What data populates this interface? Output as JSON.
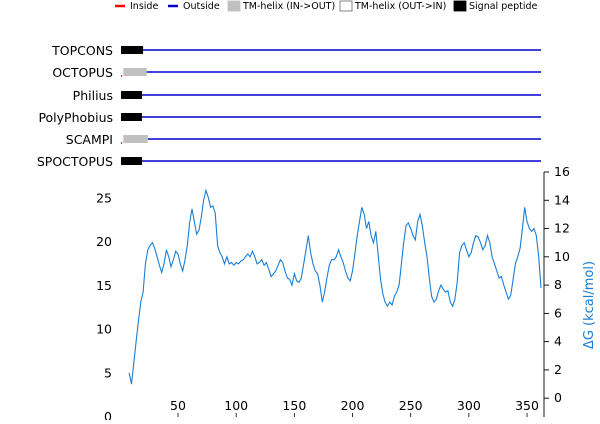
{
  "chart_data": {
    "type": "line",
    "legend": {
      "placement": "top",
      "items": [
        {
          "label": "Inside",
          "color": "#ff0000",
          "kind": "line"
        },
        {
          "label": "Outside",
          "color": "#0000cc",
          "kind": "line"
        },
        {
          "label": "TM-helix (IN->OUT)",
          "color": "#c0c0c0",
          "kind": "box"
        },
        {
          "label": "TM-helix (OUT->IN)",
          "color": "#ffffff",
          "kind": "box"
        },
        {
          "label": "Signal peptide",
          "color": "#000000",
          "kind": "box"
        }
      ]
    },
    "tracks": [
      {
        "name": "TOPCONS",
        "outside": [
          20,
          362
        ],
        "segments": [
          {
            "type": "signal",
            "start": 1,
            "end": 20
          }
        ]
      },
      {
        "name": "OCTOPUS",
        "outside": [
          23,
          362
        ],
        "inside": [
          1,
          2
        ],
        "segments": [
          {
            "type": "tm_in_out",
            "start": 3,
            "end": 23
          }
        ]
      },
      {
        "name": "Philius",
        "outside": [
          19,
          362
        ],
        "segments": [
          {
            "type": "signal",
            "start": 1,
            "end": 19
          }
        ]
      },
      {
        "name": "PolyPhobius",
        "outside": [
          19,
          362
        ],
        "segments": [
          {
            "type": "signal",
            "start": 1,
            "end": 19
          }
        ]
      },
      {
        "name": "SCAMPI",
        "outside": [
          24,
          362
        ],
        "inside": [
          1,
          2
        ],
        "segments": [
          {
            "type": "tm_in_out",
            "start": 3,
            "end": 24
          }
        ]
      },
      {
        "name": "SPOCTOPUS",
        "outside": [
          19,
          362
        ],
        "segments": [
          {
            "type": "signal",
            "start": 1,
            "end": 19
          }
        ]
      }
    ],
    "x": {
      "ticks": [
        50,
        100,
        150,
        200,
        250,
        300,
        350
      ],
      "range": [
        1,
        362
      ]
    },
    "y_left": {
      "ticks": [
        0,
        5,
        10,
        15,
        20,
        25
      ],
      "range": [
        0,
        28
      ]
    },
    "y_right": {
      "ticks": [
        0,
        2,
        4,
        6,
        8,
        10,
        12,
        14,
        16
      ],
      "label": "ΔG (kcal/mol)",
      "range": [
        -1.33,
        16
      ]
    },
    "series": [
      {
        "color": "#1a7fd4",
        "x": [
          8,
          10,
          12,
          14,
          16,
          18,
          20,
          22,
          24,
          26,
          28,
          30,
          32,
          34,
          36,
          38,
          40,
          42,
          44,
          46,
          48,
          50,
          52,
          54,
          56,
          58,
          60,
          62,
          64,
          66,
          68,
          70,
          72,
          74,
          76,
          78,
          80,
          82,
          84,
          86,
          88,
          90,
          92,
          94,
          96,
          98,
          100,
          102,
          104,
          106,
          108,
          110,
          112,
          114,
          116,
          118,
          120,
          122,
          124,
          126,
          128,
          130,
          132,
          134,
          136,
          138,
          140,
          142,
          144,
          146,
          148,
          150,
          152,
          154,
          156,
          158,
          160,
          162,
          164,
          166,
          168,
          170,
          172,
          174,
          176,
          178,
          180,
          182,
          184,
          186,
          188,
          190,
          192,
          194,
          196,
          198,
          200,
          202,
          204,
          206,
          208,
          210,
          212,
          214,
          216,
          218,
          220,
          222,
          224,
          226,
          228,
          230,
          232,
          234,
          236,
          238,
          240,
          242,
          244,
          246,
          248,
          250,
          252,
          254,
          256,
          258,
          260,
          262,
          264,
          266,
          268,
          270,
          272,
          274,
          276,
          278,
          280,
          282,
          284,
          286,
          288,
          290,
          292,
          294,
          296,
          298,
          300,
          302,
          304,
          306,
          308,
          310,
          312,
          314,
          316,
          318,
          320,
          322,
          324,
          326,
          328,
          330,
          332,
          334,
          336,
          338,
          340,
          342,
          344,
          346,
          348,
          350,
          352,
          354,
          356,
          358,
          360,
          362
        ],
        "y": [
          1.8,
          1.0,
          2.5,
          4.0,
          5.5,
          6.8,
          7.5,
          9.5,
          10.5,
          10.8,
          11.0,
          10.6,
          10.0,
          9.4,
          8.9,
          9.5,
          10.5,
          10.0,
          9.3,
          9.8,
          10.4,
          10.2,
          9.5,
          9.0,
          9.8,
          10.8,
          12.4,
          13.4,
          12.5,
          11.6,
          11.9,
          12.8,
          14.0,
          14.7,
          14.2,
          13.5,
          13.6,
          13.1,
          10.8,
          10.3,
          10.0,
          9.5,
          10.0,
          9.5,
          9.6,
          9.4,
          9.6,
          9.5,
          9.7,
          9.8,
          10.0,
          10.2,
          10.0,
          10.4,
          10.0,
          9.5,
          9.6,
          9.8,
          9.4,
          9.6,
          9.1,
          8.6,
          8.8,
          9.0,
          9.4,
          9.8,
          9.6,
          9.0,
          8.5,
          8.4,
          8.0,
          8.8,
          8.3,
          8.2,
          8.5,
          9.5,
          10.5,
          11.5,
          10.3,
          9.5,
          9.0,
          8.8,
          8.0,
          6.8,
          7.5,
          8.5,
          9.4,
          9.8,
          9.8,
          10.0,
          10.5,
          10.0,
          9.6,
          9.0,
          8.5,
          8.3,
          9.0,
          10.2,
          11.5,
          12.5,
          13.5,
          13.0,
          12.0,
          12.5,
          11.5,
          11.0,
          11.8,
          10.2,
          8.5,
          7.4,
          6.8,
          6.5,
          6.8,
          6.6,
          7.2,
          7.5,
          8.0,
          9.5,
          11.0,
          12.2,
          12.4,
          12.0,
          11.5,
          11.2,
          12.5,
          13.0,
          12.2,
          11.0,
          10.0,
          8.5,
          7.2,
          6.8,
          7.0,
          7.6,
          8.0,
          7.7,
          7.5,
          7.6,
          6.8,
          6.5,
          7.0,
          8.2,
          10.3,
          10.8,
          11.0,
          10.5,
          10.0,
          10.3,
          11.0,
          11.5,
          11.4,
          11.0,
          10.5,
          10.8,
          11.5,
          11.0,
          10.0,
          9.5,
          9.0,
          8.5,
          8.6,
          8.0,
          7.5,
          7.0,
          7.3,
          8.4,
          9.5,
          10.0,
          10.6,
          12.0,
          13.5,
          12.5,
          12.0,
          11.8,
          12.0,
          11.5,
          10.0,
          7.8
        ]
      }
    ]
  }
}
